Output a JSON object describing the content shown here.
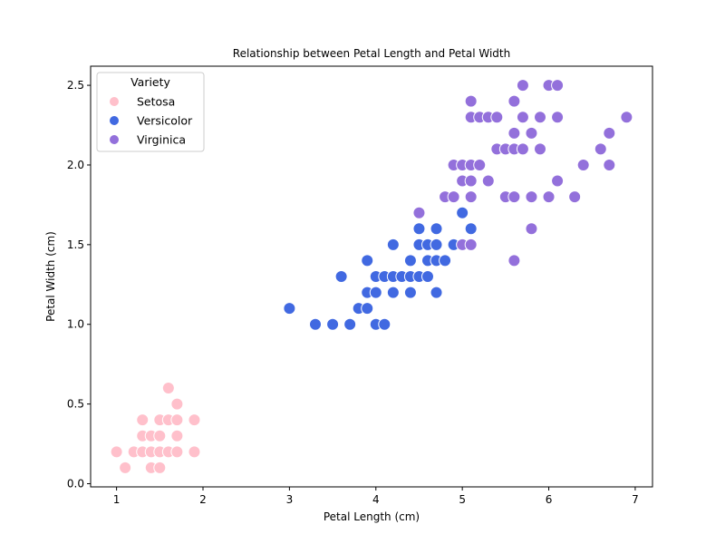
{
  "chart_data": {
    "type": "scatter",
    "title": "Relationship between Petal Length and Petal Width",
    "xlabel": "Petal Length (cm)",
    "ylabel": "Petal Width (cm)",
    "xlim": [
      0.7,
      7.2
    ],
    "ylim": [
      -0.02,
      2.62
    ],
    "xticks": [
      1,
      2,
      3,
      4,
      5,
      6,
      7
    ],
    "yticks": [
      0.0,
      0.5,
      1.0,
      1.5,
      2.0,
      2.5
    ],
    "xtick_labels": [
      "1",
      "2",
      "3",
      "4",
      "5",
      "6",
      "7"
    ],
    "ytick_labels": [
      "0.0",
      "0.5",
      "1.0",
      "1.5",
      "2.0",
      "2.5"
    ],
    "grid": false,
    "legend": {
      "title": "Variety",
      "placement": "top-left"
    },
    "series": [
      {
        "name": "Setosa",
        "color": "#ffc0cb",
        "points": [
          [
            1.0,
            0.2
          ],
          [
            1.1,
            0.1
          ],
          [
            1.2,
            0.2
          ],
          [
            1.3,
            0.2
          ],
          [
            1.3,
            0.3
          ],
          [
            1.3,
            0.4
          ],
          [
            1.4,
            0.1
          ],
          [
            1.4,
            0.2
          ],
          [
            1.4,
            0.3
          ],
          [
            1.5,
            0.1
          ],
          [
            1.5,
            0.2
          ],
          [
            1.5,
            0.3
          ],
          [
            1.5,
            0.4
          ],
          [
            1.6,
            0.2
          ],
          [
            1.6,
            0.4
          ],
          [
            1.6,
            0.6
          ],
          [
            1.7,
            0.2
          ],
          [
            1.7,
            0.3
          ],
          [
            1.7,
            0.4
          ],
          [
            1.7,
            0.5
          ],
          [
            1.9,
            0.2
          ],
          [
            1.9,
            0.4
          ]
        ]
      },
      {
        "name": "Versicolor",
        "color": "#4169e1",
        "points": [
          [
            3.0,
            1.1
          ],
          [
            3.3,
            1.0
          ],
          [
            3.5,
            1.0
          ],
          [
            3.6,
            1.3
          ],
          [
            3.7,
            1.0
          ],
          [
            3.8,
            1.1
          ],
          [
            3.9,
            1.1
          ],
          [
            3.9,
            1.2
          ],
          [
            3.9,
            1.4
          ],
          [
            4.0,
            1.0
          ],
          [
            4.0,
            1.2
          ],
          [
            4.0,
            1.3
          ],
          [
            4.1,
            1.0
          ],
          [
            4.1,
            1.3
          ],
          [
            4.2,
            1.2
          ],
          [
            4.2,
            1.3
          ],
          [
            4.2,
            1.5
          ],
          [
            4.3,
            1.3
          ],
          [
            4.4,
            1.2
          ],
          [
            4.4,
            1.3
          ],
          [
            4.4,
            1.4
          ],
          [
            4.5,
            1.3
          ],
          [
            4.5,
            1.5
          ],
          [
            4.5,
            1.6
          ],
          [
            4.6,
            1.3
          ],
          [
            4.6,
            1.4
          ],
          [
            4.6,
            1.5
          ],
          [
            4.7,
            1.2
          ],
          [
            4.7,
            1.4
          ],
          [
            4.7,
            1.5
          ],
          [
            4.7,
            1.6
          ],
          [
            4.8,
            1.4
          ],
          [
            4.9,
            1.5
          ],
          [
            5.0,
            1.7
          ],
          [
            5.1,
            1.6
          ]
        ]
      },
      {
        "name": "Virginica",
        "color": "#9370db",
        "points": [
          [
            4.5,
            1.7
          ],
          [
            4.8,
            1.8
          ],
          [
            4.9,
            1.8
          ],
          [
            4.9,
            2.0
          ],
          [
            5.0,
            1.5
          ],
          [
            5.0,
            1.9
          ],
          [
            5.0,
            2.0
          ],
          [
            5.1,
            1.5
          ],
          [
            5.1,
            1.8
          ],
          [
            5.1,
            1.9
          ],
          [
            5.1,
            2.0
          ],
          [
            5.1,
            2.3
          ],
          [
            5.1,
            2.4
          ],
          [
            5.2,
            2.0
          ],
          [
            5.2,
            2.3
          ],
          [
            5.3,
            1.9
          ],
          [
            5.3,
            2.3
          ],
          [
            5.4,
            2.1
          ],
          [
            5.4,
            2.3
          ],
          [
            5.5,
            1.8
          ],
          [
            5.5,
            2.1
          ],
          [
            5.6,
            1.4
          ],
          [
            5.6,
            1.8
          ],
          [
            5.6,
            2.1
          ],
          [
            5.6,
            2.2
          ],
          [
            5.6,
            2.4
          ],
          [
            5.7,
            2.1
          ],
          [
            5.7,
            2.3
          ],
          [
            5.7,
            2.5
          ],
          [
            5.8,
            1.6
          ],
          [
            5.8,
            1.8
          ],
          [
            5.8,
            2.2
          ],
          [
            5.9,
            2.1
          ],
          [
            5.9,
            2.3
          ],
          [
            6.0,
            1.8
          ],
          [
            6.0,
            2.5
          ],
          [
            6.1,
            1.9
          ],
          [
            6.1,
            2.3
          ],
          [
            6.1,
            2.5
          ],
          [
            6.3,
            1.8
          ],
          [
            6.4,
            2.0
          ],
          [
            6.6,
            2.1
          ],
          [
            6.7,
            2.0
          ],
          [
            6.7,
            2.2
          ],
          [
            6.9,
            2.3
          ]
        ]
      }
    ]
  }
}
